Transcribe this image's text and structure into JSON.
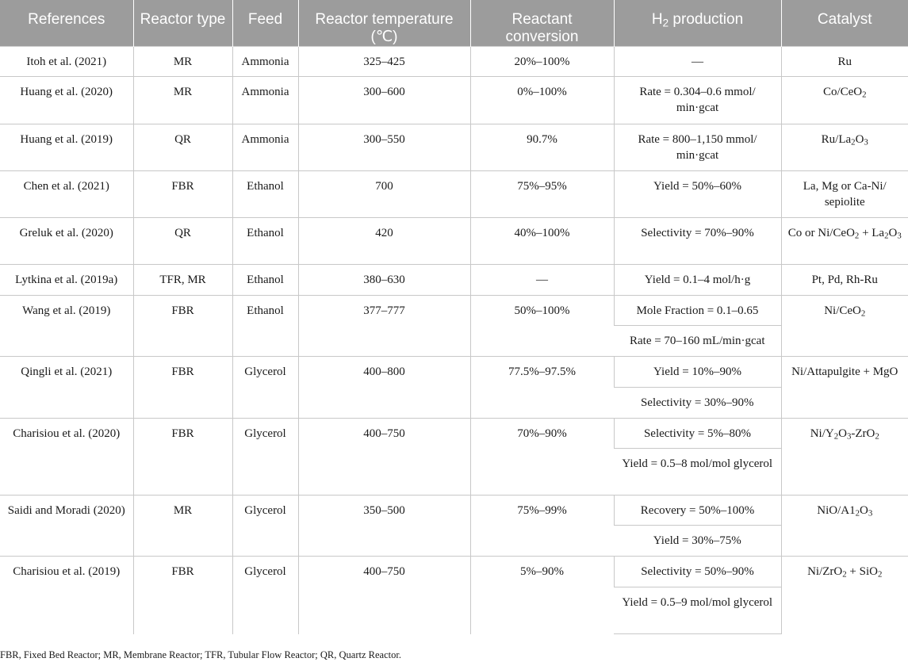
{
  "table": {
    "headers": [
      "References",
      "Reactor type",
      "Feed",
      "Reactor temperature (℃)",
      "Reactant conversion",
      "H_2 production",
      "Catalyst"
    ],
    "rows": [
      [
        "Itoh et al. (2021)",
        "MR",
        "Ammonia",
        "325–425",
        "20%–100%",
        "—",
        "Ru"
      ],
      [
        "Huang et al. (2020)",
        "MR",
        "Ammonia",
        "300–600",
        "0%–100%",
        "Rate = 0.304–0.6 mmol/ min·gcat",
        "Co/CeO_2"
      ],
      [
        "Huang et al. (2019)",
        "QR",
        "Ammonia",
        "300–550",
        "90.7%",
        "Rate = 800–1,150 mmol/ min·gcat",
        "Ru/La_2O_3"
      ],
      [
        "Chen et al. (2021)",
        "FBR",
        "Ethanol",
        "700",
        "75%–95%",
        "Yield = 50%–60%",
        "La, Mg or Ca-Ni/ sepiolite"
      ],
      [
        "Greluk et al. (2020)",
        "QR",
        "Ethanol",
        "420",
        "40%–100%",
        "Selectivity = 70%–90%",
        "Co or Ni/CeO_2 + La_2O_3"
      ],
      [
        "Lytkina et al. (2019a)",
        "TFR, MR",
        "Ethanol",
        "380–630",
        "—",
        "Yield = 0.1–4 mol/h·g",
        "Pt, Pd, Rh-Ru"
      ],
      [
        "Wang et al. (2019)",
        "FBR",
        "Ethanol",
        "377–777",
        "50%–100%",
        "Mole Fraction = 0.1–0.65",
        "Ni/CeO_2"
      ],
      [
        "",
        "",
        "",
        "",
        "",
        "Rate = 70–160 mL/min·gcat",
        ""
      ],
      [
        "Qingli et al. (2021)",
        "FBR",
        "Glycerol",
        "400–800",
        "77.5%–97.5%",
        "Yield = 10%–90%",
        "Ni/Attapulgite + MgO"
      ],
      [
        "",
        "",
        "",
        "",
        "",
        "Selectivity = 30%–90%",
        ""
      ],
      [
        "Charisiou et al. (2020)",
        "FBR",
        "Glycerol",
        "400–750",
        "70%–90%",
        "Selectivity = 5%–80%",
        "Ni/Y_2O_3-ZrO_2"
      ],
      [
        "",
        "",
        "",
        "",
        "",
        "Yield = 0.5–8 mol/mol glycerol",
        ""
      ],
      [
        "Saidi and Moradi (2020)",
        "MR",
        "Glycerol",
        "350–500",
        "75%–99%",
        "Recovery = 50%–100%",
        "NiO/A1_2O_3"
      ],
      [
        "",
        "",
        "",
        "",
        "",
        "Yield = 30%–75%",
        ""
      ],
      [
        "Charisiou et al. (2019)",
        "FBR",
        "Glycerol",
        "400–750",
        "5%–90%",
        "Selectivity = 50%–90%",
        "Ni/ZrO_2 + SiO_2"
      ],
      [
        "",
        "",
        "",
        "",
        "",
        "Yield = 0.5–9 mol/mol glycerol",
        ""
      ]
    ]
  },
  "footnote": "FBR, Fixed Bed Reactor; MR, Membrane Reactor; TFR, Tubular Flow Reactor; QR, Quartz Reactor."
}
